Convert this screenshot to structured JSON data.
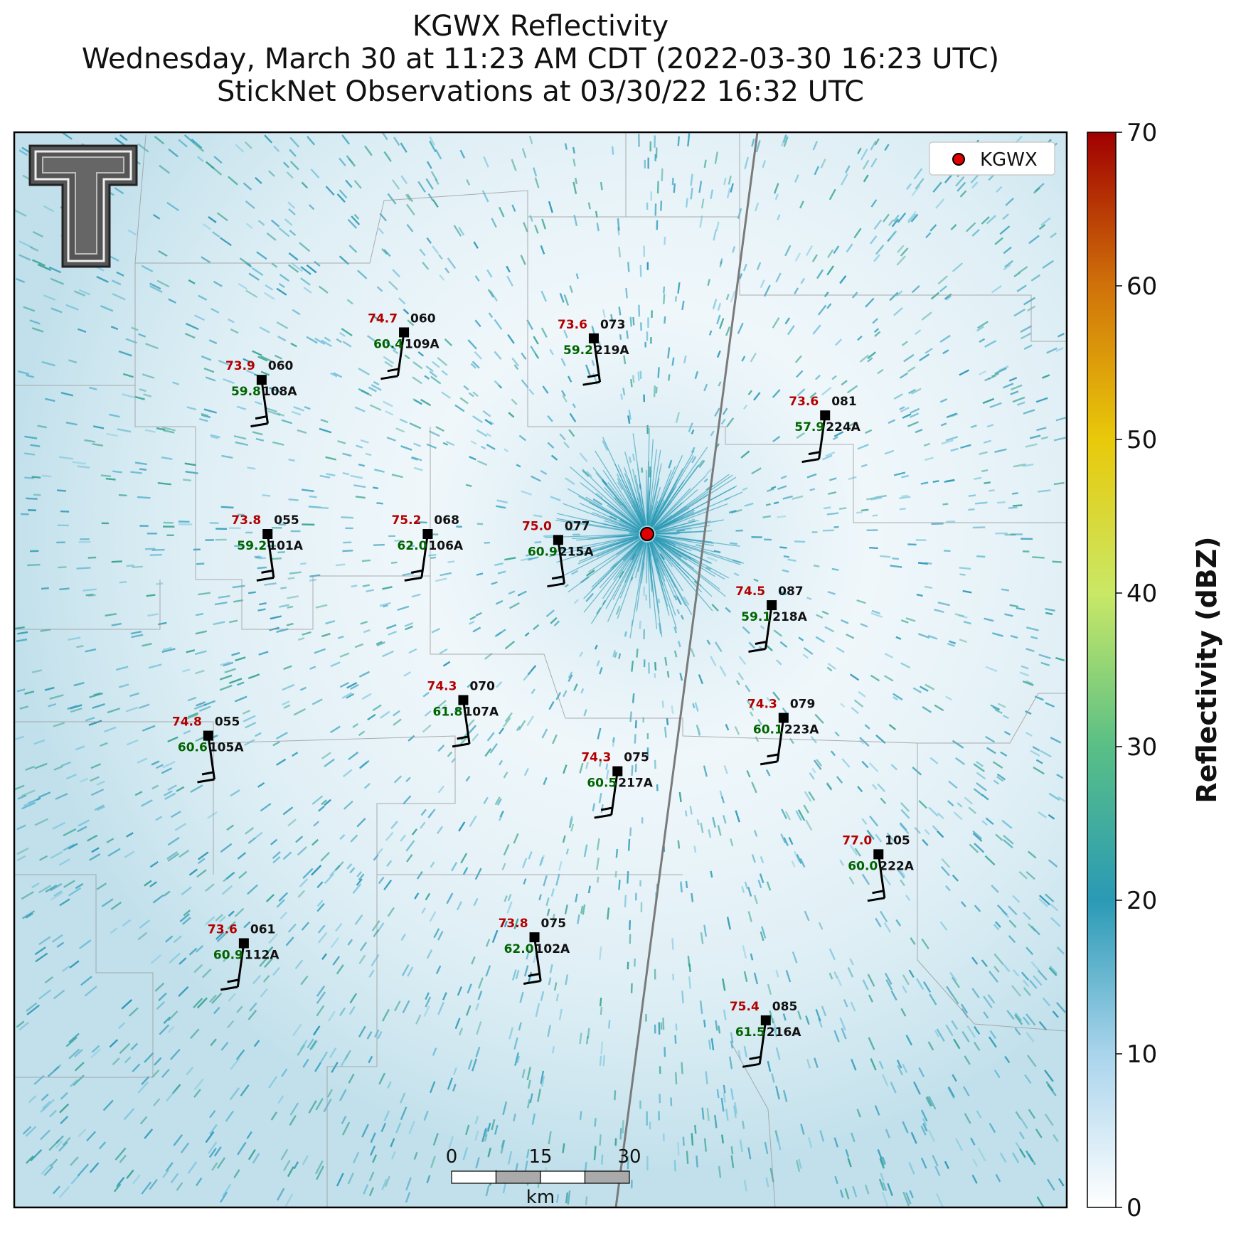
{
  "title": {
    "line1": "KGWX Reflectivity",
    "line2": "Wednesday, March 30 at 11:23 AM CDT (2022-03-30 16:23 UTC)",
    "line3": "StickNet Observations at 03/30/22 16:32 UTC"
  },
  "colors": {
    "temp": "#b30000",
    "dewpoint": "#006400",
    "radar_marker": "#e00000"
  },
  "logo": {
    "icon": "texas-tech-double-t-logo"
  },
  "legend": {
    "label": "KGWX",
    "icon": "red-circle-marker-icon"
  },
  "radar": {
    "name": "KGWX",
    "x_km": 0,
    "y_km": 0
  },
  "stations": [
    {
      "id": "108A",
      "temp": "73.9",
      "dewpoint": "59.8",
      "pressure": "060",
      "x_km": -65,
      "y_km": 26
    },
    {
      "id": "109A",
      "temp": "74.7",
      "dewpoint": "60.4",
      "pressure": "060",
      "x_km": -41,
      "y_km": 34
    },
    {
      "id": "219A",
      "temp": "73.6",
      "dewpoint": "59.2",
      "pressure": "073",
      "x_km": -9,
      "y_km": 33
    },
    {
      "id": "224A",
      "temp": "73.6",
      "dewpoint": "57.9",
      "pressure": "081",
      "x_km": 30,
      "y_km": 20
    },
    {
      "id": "101A",
      "temp": "73.8",
      "dewpoint": "59.2",
      "pressure": "055",
      "x_km": -64,
      "y_km": 0
    },
    {
      "id": "106A",
      "temp": "75.2",
      "dewpoint": "62.0",
      "pressure": "068",
      "x_km": -37,
      "y_km": 0
    },
    {
      "id": "215A",
      "temp": "75.0",
      "dewpoint": "60.9",
      "pressure": "077",
      "x_km": -15,
      "y_km": -1
    },
    {
      "id": "218A",
      "temp": "74.5",
      "dewpoint": "59.1",
      "pressure": "087",
      "x_km": 21,
      "y_km": -12
    },
    {
      "id": "107A",
      "temp": "74.3",
      "dewpoint": "61.8",
      "pressure": "070",
      "x_km": -31,
      "y_km": -28
    },
    {
      "id": "223A",
      "temp": "74.3",
      "dewpoint": "60.1",
      "pressure": "079",
      "x_km": 23,
      "y_km": -31
    },
    {
      "id": "105A",
      "temp": "74.8",
      "dewpoint": "60.6",
      "pressure": "055",
      "x_km": -74,
      "y_km": -34
    },
    {
      "id": "217A",
      "temp": "74.3",
      "dewpoint": "60.5",
      "pressure": "075",
      "x_km": -5,
      "y_km": -40
    },
    {
      "id": "222A",
      "temp": "77.0",
      "dewpoint": "60.0",
      "pressure": "105",
      "x_km": 39,
      "y_km": -54
    },
    {
      "id": "112A",
      "temp": "73.6",
      "dewpoint": "60.9",
      "pressure": "061",
      "x_km": -68,
      "y_km": -69
    },
    {
      "id": "102A",
      "temp": "73.8",
      "dewpoint": "62.0",
      "pressure": "075",
      "x_km": -19,
      "y_km": -68
    },
    {
      "id": "216A",
      "temp": "75.4",
      "dewpoint": "61.5",
      "pressure": "085",
      "x_km": 20,
      "y_km": -82
    }
  ],
  "colorbar": {
    "label": "Reflectivity (dBZ)",
    "min": 0,
    "max": 70,
    "ticks": [
      "0",
      "10",
      "20",
      "30",
      "40",
      "50",
      "60",
      "70"
    ],
    "stops": [
      "#ffffff",
      "#a9d4ec",
      "#2a9ab5",
      "#59bf86",
      "#c9e866",
      "#e9c90a",
      "#d0720a",
      "#a00000"
    ]
  },
  "scalebar": {
    "labels": [
      "0",
      "15",
      "30"
    ],
    "unit": "km"
  }
}
